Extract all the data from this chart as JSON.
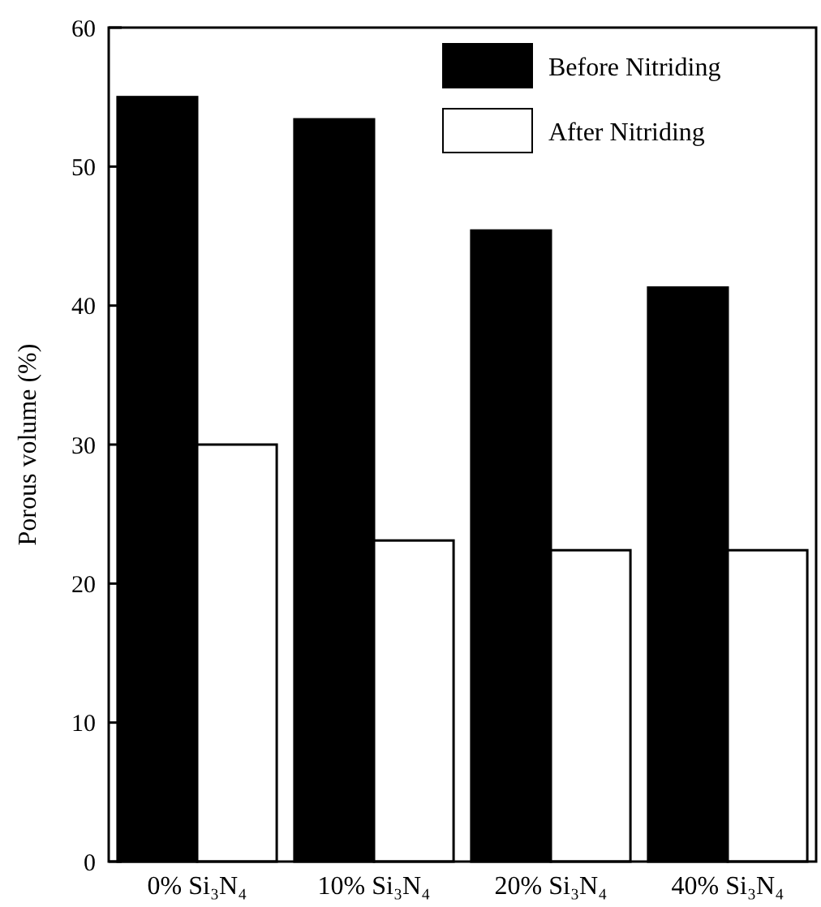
{
  "chart_data": {
    "type": "bar",
    "ylabel": "Porous volume (%)",
    "categories": [
      "0% Si₃N₄",
      "10% Si₃N₄",
      "20% Si₃N₄",
      "40% Si₃N₄"
    ],
    "series": [
      {
        "name": "Before Nitriding",
        "color": "#000000",
        "values": [
          55.0,
          53.4,
          45.4,
          41.3
        ]
      },
      {
        "name": "After Nitriding",
        "color": "#ffffff",
        "values": [
          30.0,
          23.1,
          22.4,
          22.4
        ]
      }
    ],
    "ylim": [
      0,
      60
    ],
    "yticks": [
      0,
      10,
      20,
      30,
      40,
      50,
      60
    ],
    "grid": false,
    "legend": "top right"
  }
}
